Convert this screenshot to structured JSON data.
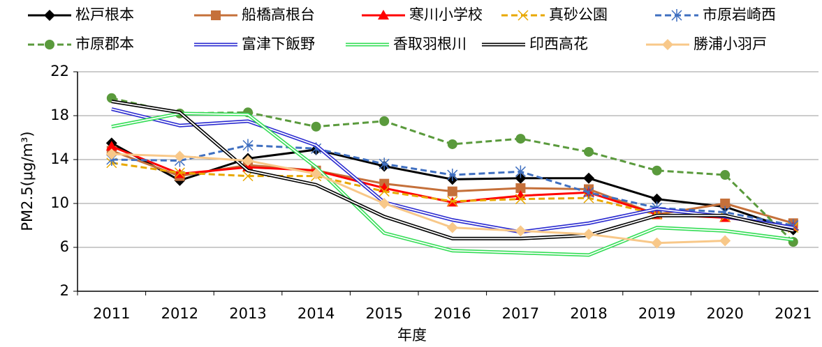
{
  "chart_data": {
    "type": "line",
    "y_label": "PM2.5(μg/m³)",
    "x_label": "年度",
    "categories": [
      "2011",
      "2012",
      "2013",
      "2014",
      "2015",
      "2016",
      "2017",
      "2018",
      "2019",
      "2020",
      "2021"
    ],
    "ylim": [
      2,
      22
    ],
    "yticks": [
      2,
      6,
      10,
      14,
      18,
      22
    ],
    "grid": true,
    "series": [
      {
        "name": "松戸根本",
        "color": "#000000",
        "marker": "diamond",
        "values": [
          15.5,
          12.1,
          14.1,
          14.9,
          13.4,
          12.2,
          12.3,
          12.3,
          10.4,
          9.7,
          7.6
        ]
      },
      {
        "name": "船橋高根台",
        "color": "#c5703a",
        "marker": "square",
        "values": [
          14.8,
          12.5,
          13.5,
          13.0,
          11.8,
          11.1,
          11.4,
          11.3,
          9.0,
          10.0,
          8.2
        ]
      },
      {
        "name": "寒川小学校",
        "color": "#ff0000",
        "marker": "triangle",
        "values": [
          15.2,
          12.7,
          13.3,
          13.0,
          11.4,
          10.1,
          10.7,
          11.0,
          9.0,
          8.7,
          7.9
        ]
      },
      {
        "name": "真砂公園",
        "color": "#e8a800",
        "marker": "x",
        "dash": true,
        "values": [
          13.7,
          12.8,
          12.5,
          12.5,
          11.1,
          10.2,
          10.4,
          10.5,
          9.0,
          8.8,
          7.8
        ]
      },
      {
        "name": "市原岩崎西",
        "color": "#3f6fc0",
        "marker": "star",
        "dash": true,
        "values": [
          14.0,
          13.9,
          15.3,
          15.0,
          13.6,
          12.6,
          12.9,
          11.0,
          9.6,
          9.2,
          8.0
        ]
      },
      {
        "name": "市原郡本",
        "color": "#5a9a3c",
        "marker": "circle",
        "dash": true,
        "values": [
          19.6,
          18.2,
          18.3,
          17.0,
          17.5,
          15.4,
          15.9,
          14.7,
          13.0,
          12.6,
          6.5
        ]
      },
      {
        "name": "富津下飯野",
        "color": "#2a2ad0",
        "double": true,
        "values": [
          18.6,
          17.1,
          17.5,
          15.3,
          10.1,
          8.5,
          7.4,
          8.2,
          9.5,
          8.8,
          7.8
        ]
      },
      {
        "name": "香取羽根川",
        "color": "#33dd55",
        "double": true,
        "values": [
          17.0,
          18.2,
          18.1,
          13.3,
          7.3,
          5.7,
          5.5,
          5.3,
          7.8,
          7.5,
          6.7
        ]
      },
      {
        "name": "印西高花",
        "color": "#000000",
        "double": true,
        "values": [
          19.3,
          18.3,
          13.0,
          11.7,
          8.8,
          6.8,
          6.8,
          7.1,
          8.9,
          8.9,
          7.5
        ]
      },
      {
        "name": "勝浦小羽戸",
        "color": "#f8c889",
        "marker": "diamond",
        "values": [
          14.5,
          14.3,
          13.9,
          12.7,
          10.0,
          7.8,
          7.5,
          7.2,
          6.4,
          6.6,
          null
        ]
      }
    ]
  }
}
